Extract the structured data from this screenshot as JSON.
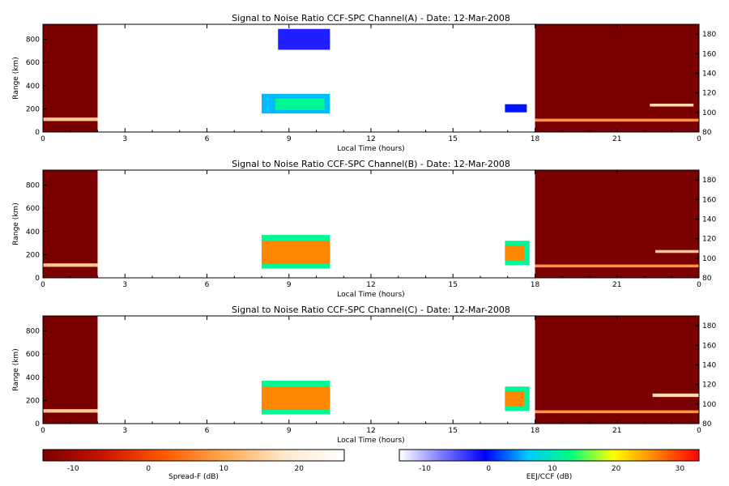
{
  "chart_data": [
    {
      "type": "heatmap",
      "title": "Signal to Noise Ratio CCF-SPC Channel(A) - Date: 12-Mar-2008",
      "xlabel": "Local Time (hours)",
      "ylabel": "Range (km)",
      "xlim": [
        0,
        24
      ],
      "ylim": [
        0,
        930
      ],
      "y2lim": [
        80,
        190
      ],
      "x_ticks": [
        "0",
        "3",
        "6",
        "9",
        "12",
        "15",
        "18",
        "21",
        "0"
      ],
      "y_ticks": [
        "0",
        "200",
        "400",
        "600",
        "800"
      ],
      "y2_ticks": [
        "80",
        "100",
        "120",
        "140",
        "160",
        "180"
      ],
      "regions": [
        {
          "scale": "spread",
          "t0": 0,
          "t1": 2,
          "r0": 0,
          "r1": 930,
          "level": 0.0
        },
        {
          "scale": "spread",
          "t0": 0,
          "t1": 2,
          "r0": 95,
          "r1": 125,
          "level": 0.7
        },
        {
          "scale": "spread",
          "t0": 18,
          "t1": 24,
          "r0": 0,
          "r1": 930,
          "level": 0.0
        },
        {
          "scale": "spread",
          "t0": 18,
          "t1": 24,
          "r0": 90,
          "r1": 115,
          "level": 0.55
        },
        {
          "scale": "spread",
          "t0": 22.2,
          "t1": 23.8,
          "r0": 220,
          "r1": 245,
          "level": 0.75
        },
        {
          "scale": "eej",
          "t0": 8.0,
          "t1": 10.5,
          "r0": 160,
          "r1": 330,
          "level": 0.42
        },
        {
          "scale": "eej",
          "t0": 8.5,
          "t1": 10.3,
          "r0": 190,
          "r1": 290,
          "level": 0.55
        },
        {
          "scale": "eej",
          "t0": 8.6,
          "t1": 10.5,
          "r0": 710,
          "r1": 890,
          "level": 0.25
        },
        {
          "scale": "eej",
          "t0": 16.9,
          "t1": 17.7,
          "r0": 170,
          "r1": 240,
          "level": 0.3
        }
      ]
    },
    {
      "type": "heatmap",
      "title": "Signal to Noise Ratio CCF-SPC Channel(B) - Date: 12-Mar-2008",
      "xlabel": "Local Time (hours)",
      "ylabel": "Range (km)",
      "xlim": [
        0,
        24
      ],
      "ylim": [
        0,
        930
      ],
      "y2lim": [
        80,
        190
      ],
      "x_ticks": [
        "0",
        "3",
        "6",
        "9",
        "12",
        "15",
        "18",
        "21",
        "0"
      ],
      "y_ticks": [
        "0",
        "200",
        "400",
        "600",
        "800"
      ],
      "y2_ticks": [
        "80",
        "100",
        "120",
        "140",
        "160",
        "180"
      ],
      "regions": [
        {
          "scale": "spread",
          "t0": 0,
          "t1": 2,
          "r0": 0,
          "r1": 930,
          "level": 0.0
        },
        {
          "scale": "spread",
          "t0": 0,
          "t1": 2,
          "r0": 95,
          "r1": 125,
          "level": 0.7
        },
        {
          "scale": "spread",
          "t0": 18,
          "t1": 24,
          "r0": 0,
          "r1": 930,
          "level": 0.0
        },
        {
          "scale": "spread",
          "t0": 18,
          "t1": 24,
          "r0": 90,
          "r1": 115,
          "level": 0.55
        },
        {
          "scale": "spread",
          "t0": 22.4,
          "t1": 24,
          "r0": 215,
          "r1": 240,
          "level": 0.7
        },
        {
          "scale": "eej",
          "t0": 8.0,
          "t1": 10.5,
          "r0": 80,
          "r1": 370,
          "level": 0.55
        },
        {
          "scale": "eej",
          "t0": 8.0,
          "t1": 10.5,
          "r0": 120,
          "r1": 320,
          "level": 0.85
        },
        {
          "scale": "eej",
          "t0": 16.9,
          "t1": 17.8,
          "r0": 110,
          "r1": 320,
          "level": 0.55
        },
        {
          "scale": "eej",
          "t0": 16.9,
          "t1": 17.6,
          "r0": 150,
          "r1": 280,
          "level": 0.85
        }
      ]
    },
    {
      "type": "heatmap",
      "title": "Signal to Noise Ratio CCF-SPC Channel(C) - Date: 12-Mar-2008",
      "xlabel": "Local Time (hours)",
      "ylabel": "Range (km)",
      "xlim": [
        0,
        24
      ],
      "ylim": [
        0,
        930
      ],
      "y2lim": [
        80,
        190
      ],
      "x_ticks": [
        "0",
        "3",
        "6",
        "9",
        "12",
        "15",
        "18",
        "21",
        "0"
      ],
      "y_ticks": [
        "0",
        "200",
        "400",
        "600",
        "800"
      ],
      "y2_ticks": [
        "80",
        "100",
        "120",
        "140",
        "160",
        "180"
      ],
      "regions": [
        {
          "scale": "spread",
          "t0": 0,
          "t1": 2,
          "r0": 0,
          "r1": 930,
          "level": 0.0
        },
        {
          "scale": "spread",
          "t0": 0,
          "t1": 2,
          "r0": 95,
          "r1": 125,
          "level": 0.7
        },
        {
          "scale": "spread",
          "t0": 18,
          "t1": 24,
          "r0": 0,
          "r1": 930,
          "level": 0.0
        },
        {
          "scale": "spread",
          "t0": 18,
          "t1": 24,
          "r0": 90,
          "r1": 115,
          "level": 0.55
        },
        {
          "scale": "spread",
          "t0": 22.3,
          "t1": 24,
          "r0": 230,
          "r1": 260,
          "level": 0.75
        },
        {
          "scale": "eej",
          "t0": 8.0,
          "t1": 10.5,
          "r0": 80,
          "r1": 370,
          "level": 0.55
        },
        {
          "scale": "eej",
          "t0": 8.0,
          "t1": 10.5,
          "r0": 120,
          "r1": 320,
          "level": 0.85
        },
        {
          "scale": "eej",
          "t0": 16.9,
          "t1": 17.8,
          "r0": 110,
          "r1": 320,
          "level": 0.55
        },
        {
          "scale": "eej",
          "t0": 16.9,
          "t1": 17.6,
          "r0": 150,
          "r1": 280,
          "level": 0.85
        }
      ]
    }
  ],
  "colorbars": [
    {
      "label": "Spread-F (dB)",
      "range": [
        -14,
        26
      ],
      "ticks": [
        "-10",
        "0",
        "10",
        "20"
      ],
      "tick_values": [
        -10,
        0,
        10,
        20
      ],
      "colors": [
        "#7a0000",
        "#c81400",
        "#ff5a00",
        "#ffa850",
        "#ffe8cc",
        "#ffffff"
      ]
    },
    {
      "label": "EEJ/CCF (dB)",
      "range": [
        -14,
        33
      ],
      "ticks": [
        "-10",
        "0",
        "10",
        "20",
        "30"
      ],
      "tick_values": [
        -10,
        0,
        10,
        20,
        30
      ],
      "colors": [
        "#ffffff",
        "#7a7aff",
        "#0000ff",
        "#00c8ff",
        "#00ff80",
        "#ffff00",
        "#ff8000",
        "#ff0000"
      ]
    }
  ]
}
